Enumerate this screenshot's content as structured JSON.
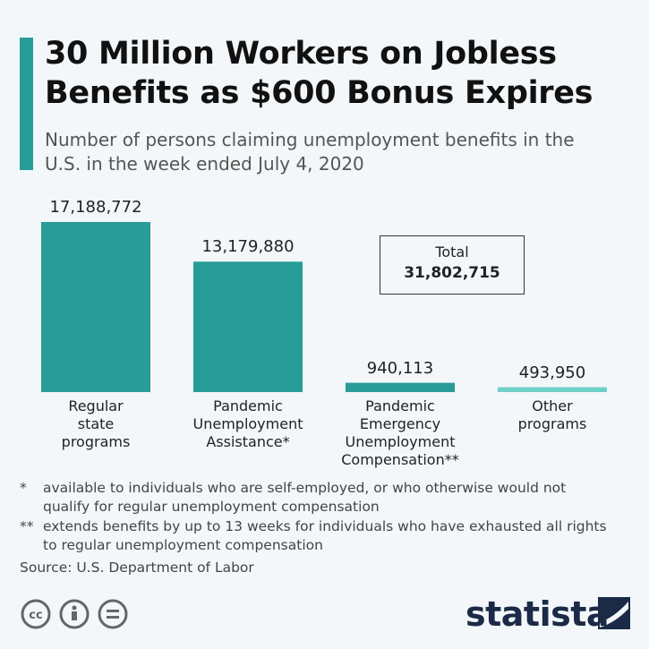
{
  "chart_data": {
    "type": "bar",
    "title": "30 Million Workers on Jobless Benefits as $600 Bonus Expires",
    "subtitle": "Number of persons claiming unemployment benefits in the U.S. in the week ended July 4, 2020",
    "categories": [
      "Regular state programs",
      "Pandemic Unemployment Assistance*",
      "Pandemic Emergency Unemployment Compensation**",
      "Other programs"
    ],
    "values": [
      17188772,
      13179880,
      940113,
      493950
    ],
    "value_labels": [
      "17,188,772",
      "13,179,880",
      "940,113",
      "493,950"
    ],
    "colors": [
      "#279c99",
      "#279c99",
      "#279c99",
      "#6fd0c9"
    ],
    "annotations": {
      "total_label": "Total",
      "total_value": "31,802,715"
    },
    "footnotes": [
      {
        "marker": "*",
        "text": "available to individuals who are self-employed, or who otherwise would not qualify for regular unemployment compensation"
      },
      {
        "marker": "**",
        "text": "extends benefits by up to 13 weeks for individuals who have exhausted all rights to regular unemployment compensation"
      }
    ],
    "source": "Source: U.S. Department of Labor",
    "brand": "statista"
  }
}
